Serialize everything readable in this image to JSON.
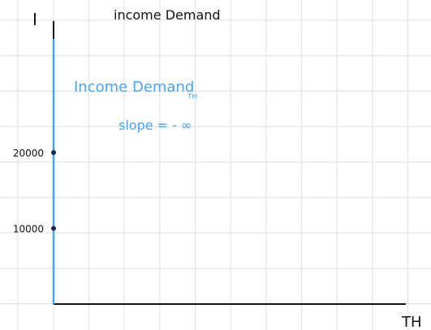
{
  "chart_data": {
    "type": "line",
    "title": "income Demand",
    "xlabel": "TH",
    "ylabel": "I",
    "yticks": [
      {
        "value": 10000,
        "label": "10000"
      },
      {
        "value": 20000,
        "label": "20000"
      }
    ],
    "series": [
      {
        "name": "Income Demand",
        "name_subscript": "TH",
        "x": [
          0,
          0
        ],
        "y": [
          0,
          35000
        ]
      }
    ],
    "annotations": [
      "slope = - ∞"
    ],
    "xlim": [
      0,
      10
    ],
    "ylim": [
      0,
      35000
    ],
    "grid": true,
    "colors": {
      "axis": "#111111",
      "series": "#4aa3ea",
      "grid": "#e3e3e3",
      "annotation": "#4aa3ea"
    }
  }
}
